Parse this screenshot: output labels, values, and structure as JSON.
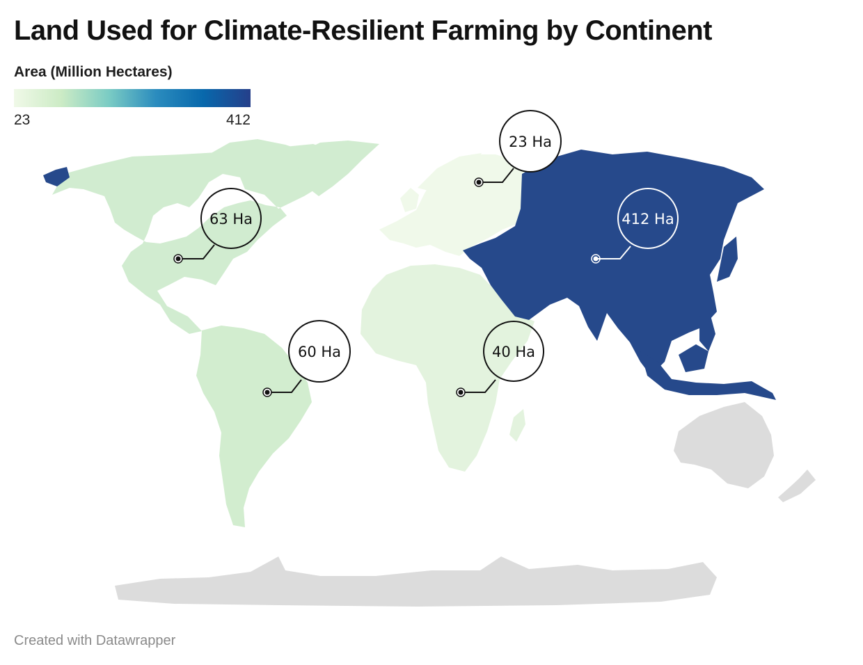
{
  "title": "Land Used for Climate-Resilient Farming by Continent",
  "legend": {
    "title": "Area (Million Hectares)",
    "min": "23",
    "max": "412",
    "colors": [
      "#f0f9e8",
      "#ccebc5",
      "#7bccc4",
      "#2b8cbe",
      "#0868ac",
      "#253f8a"
    ]
  },
  "colors": {
    "north_america": "#d1ecd0",
    "south_america": "#d2edcf",
    "europe": "#f0f9ea",
    "africa": "#e3f3de",
    "asia": "#26498b",
    "oceania": "#dcdcdc",
    "antarctica": "#dcdcdc"
  },
  "callouts": {
    "north_america": "63 Ha",
    "south_america": "60 Ha",
    "europe": "23 Ha",
    "africa": "40 Ha",
    "asia": "412 Ha"
  },
  "footer": "Created with Datawrapper"
}
